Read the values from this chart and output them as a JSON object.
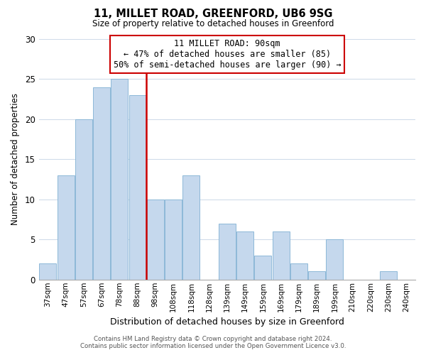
{
  "title": "11, MILLET ROAD, GREENFORD, UB6 9SG",
  "subtitle": "Size of property relative to detached houses in Greenford",
  "xlabel": "Distribution of detached houses by size in Greenford",
  "ylabel": "Number of detached properties",
  "bar_labels": [
    "37sqm",
    "47sqm",
    "57sqm",
    "67sqm",
    "78sqm",
    "88sqm",
    "98sqm",
    "108sqm",
    "118sqm",
    "128sqm",
    "139sqm",
    "149sqm",
    "159sqm",
    "169sqm",
    "179sqm",
    "189sqm",
    "199sqm",
    "210sqm",
    "220sqm",
    "230sqm",
    "240sqm"
  ],
  "bar_values": [
    2,
    13,
    20,
    24,
    25,
    23,
    10,
    10,
    13,
    0,
    7,
    6,
    3,
    6,
    2,
    1,
    5,
    0,
    0,
    1,
    0
  ],
  "bar_color": "#c5d8ed",
  "bar_edge_color": "#8db8d8",
  "highlight_line_color": "#cc0000",
  "highlight_line_index": 5.5,
  "annotation_line1": "11 MILLET ROAD: 90sqm",
  "annotation_line2": "← 47% of detached houses are smaller (85)",
  "annotation_line3": "50% of semi-detached houses are larger (90) →",
  "annotation_box_color": "#ffffff",
  "annotation_box_edge_color": "#cc0000",
  "ylim": [
    0,
    30
  ],
  "yticks": [
    0,
    5,
    10,
    15,
    20,
    25,
    30
  ],
  "background_color": "#ffffff",
  "grid_color": "#d0dcea",
  "footer_line1": "Contains HM Land Registry data © Crown copyright and database right 2024.",
  "footer_line2": "Contains public sector information licensed under the Open Government Licence v3.0."
}
